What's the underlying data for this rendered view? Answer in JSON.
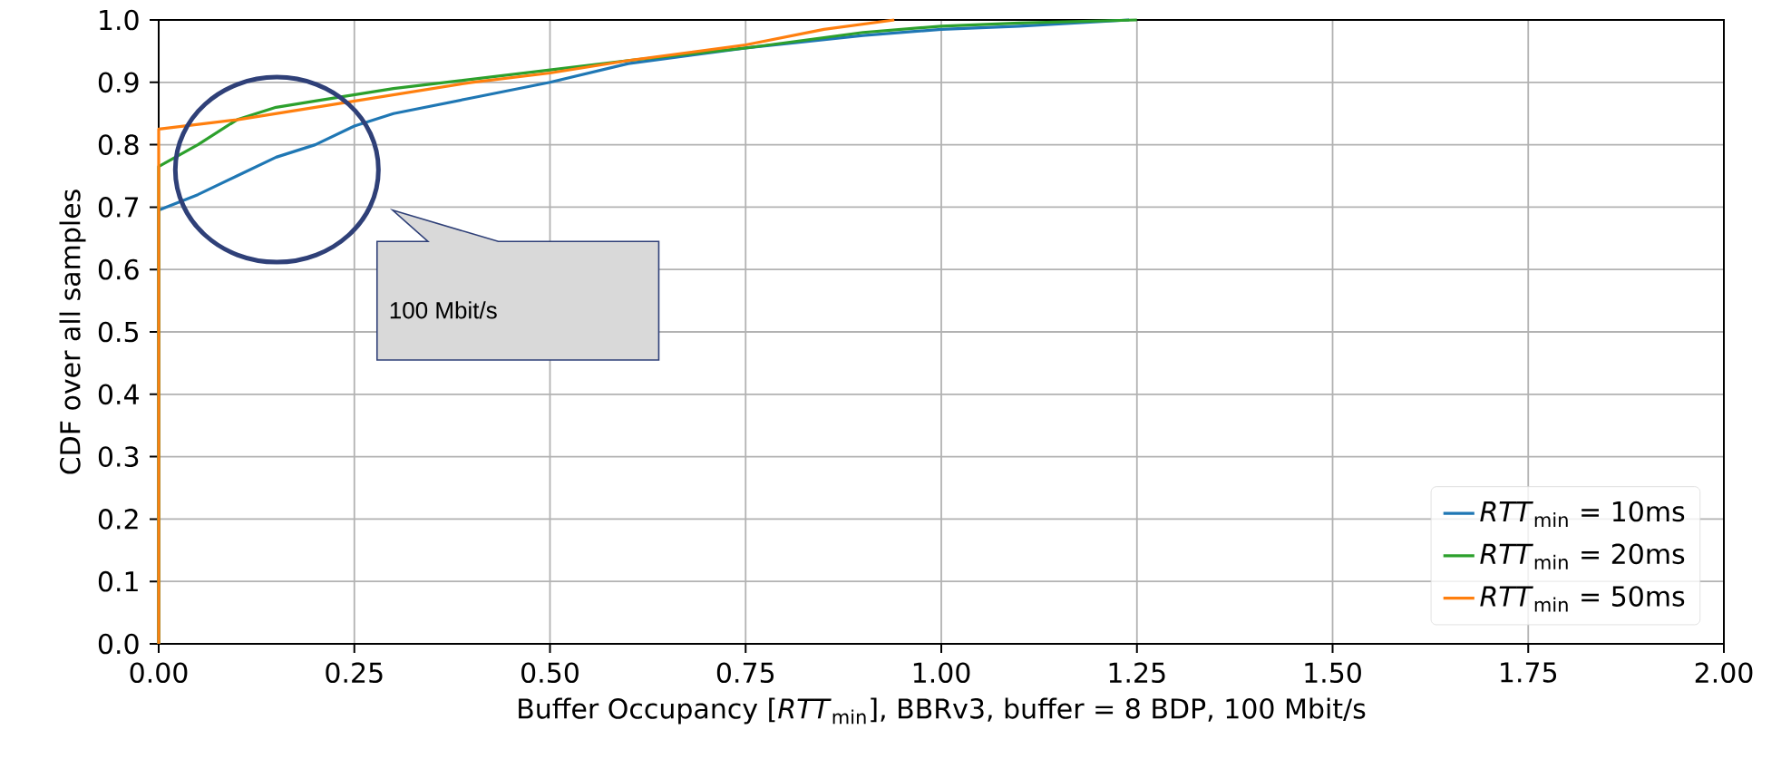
{
  "chart_data": {
    "type": "line",
    "xlabel": "Buffer Occupancy [*RTT*$_{min}$], BBRv3, buffer = 8 BDP, 100 Mbit/s",
    "ylabel": "CDF over all samples",
    "xlim": [
      0,
      2
    ],
    "ylim": [
      0,
      1
    ],
    "xticks": [
      {
        "value": 0,
        "label": "0.00"
      },
      {
        "value": 0.25,
        "label": "0.25"
      },
      {
        "value": 0.5,
        "label": "0.50"
      },
      {
        "value": 0.75,
        "label": "0.75"
      },
      {
        "value": 1,
        "label": "1.00"
      },
      {
        "value": 1.25,
        "label": "1.25"
      },
      {
        "value": 1.5,
        "label": "1.50"
      },
      {
        "value": 1.75,
        "label": "1.75"
      },
      {
        "value": 2,
        "label": "2.00"
      }
    ],
    "yticks": [
      {
        "value": 0,
        "label": "0.0"
      },
      {
        "value": 0.1,
        "label": "0.1"
      },
      {
        "value": 0.2,
        "label": "0.2"
      },
      {
        "value": 0.3,
        "label": "0.3"
      },
      {
        "value": 0.4,
        "label": "0.4"
      },
      {
        "value": 0.5,
        "label": "0.5"
      },
      {
        "value": 0.6,
        "label": "0.6"
      },
      {
        "value": 0.7,
        "label": "0.7"
      },
      {
        "value": 0.8,
        "label": "0.8"
      },
      {
        "value": 0.9,
        "label": "0.9"
      },
      {
        "value": 1,
        "label": "1.0"
      }
    ],
    "grid": true,
    "legend": "bottom right",
    "marker": "none",
    "line_style": "solid",
    "annotations": [
      "100 Mbit/s"
    ],
    "series": [
      {
        "name": "*RTT*$_{min}$ = 10ms",
        "color": "#1f77b4",
        "x": [
          0,
          0,
          0.05,
          0.1,
          0.15,
          0.2,
          0.25,
          0.3,
          0.4,
          0.5,
          0.6,
          0.75,
          0.9,
          1.0,
          1.1,
          1.24
        ],
        "values": [
          0,
          0.695,
          0.72,
          0.75,
          0.78,
          0.8,
          0.83,
          0.85,
          0.875,
          0.9,
          0.93,
          0.955,
          0.975,
          0.985,
          0.99,
          1.0
        ]
      },
      {
        "name": "*RTT*$_{min}$ = 20ms",
        "color": "#2ca02c",
        "x": [
          0,
          0,
          0.05,
          0.1,
          0.15,
          0.2,
          0.3,
          0.4,
          0.5,
          0.6,
          0.75,
          0.9,
          1.0,
          1.1,
          1.25
        ],
        "values": [
          0,
          0.765,
          0.8,
          0.84,
          0.86,
          0.87,
          0.89,
          0.905,
          0.92,
          0.935,
          0.955,
          0.98,
          0.99,
          0.995,
          1.0
        ]
      },
      {
        "name": "*RTT*$_{min}$ = 50ms",
        "color": "#ff7f0e",
        "x": [
          0,
          0,
          0.1,
          0.2,
          0.3,
          0.4,
          0.5,
          0.6,
          0.75,
          0.85,
          0.94
        ],
        "values": [
          0,
          0.825,
          0.84,
          0.86,
          0.88,
          0.9,
          0.915,
          0.935,
          0.96,
          0.985,
          1.0
        ]
      }
    ]
  }
}
